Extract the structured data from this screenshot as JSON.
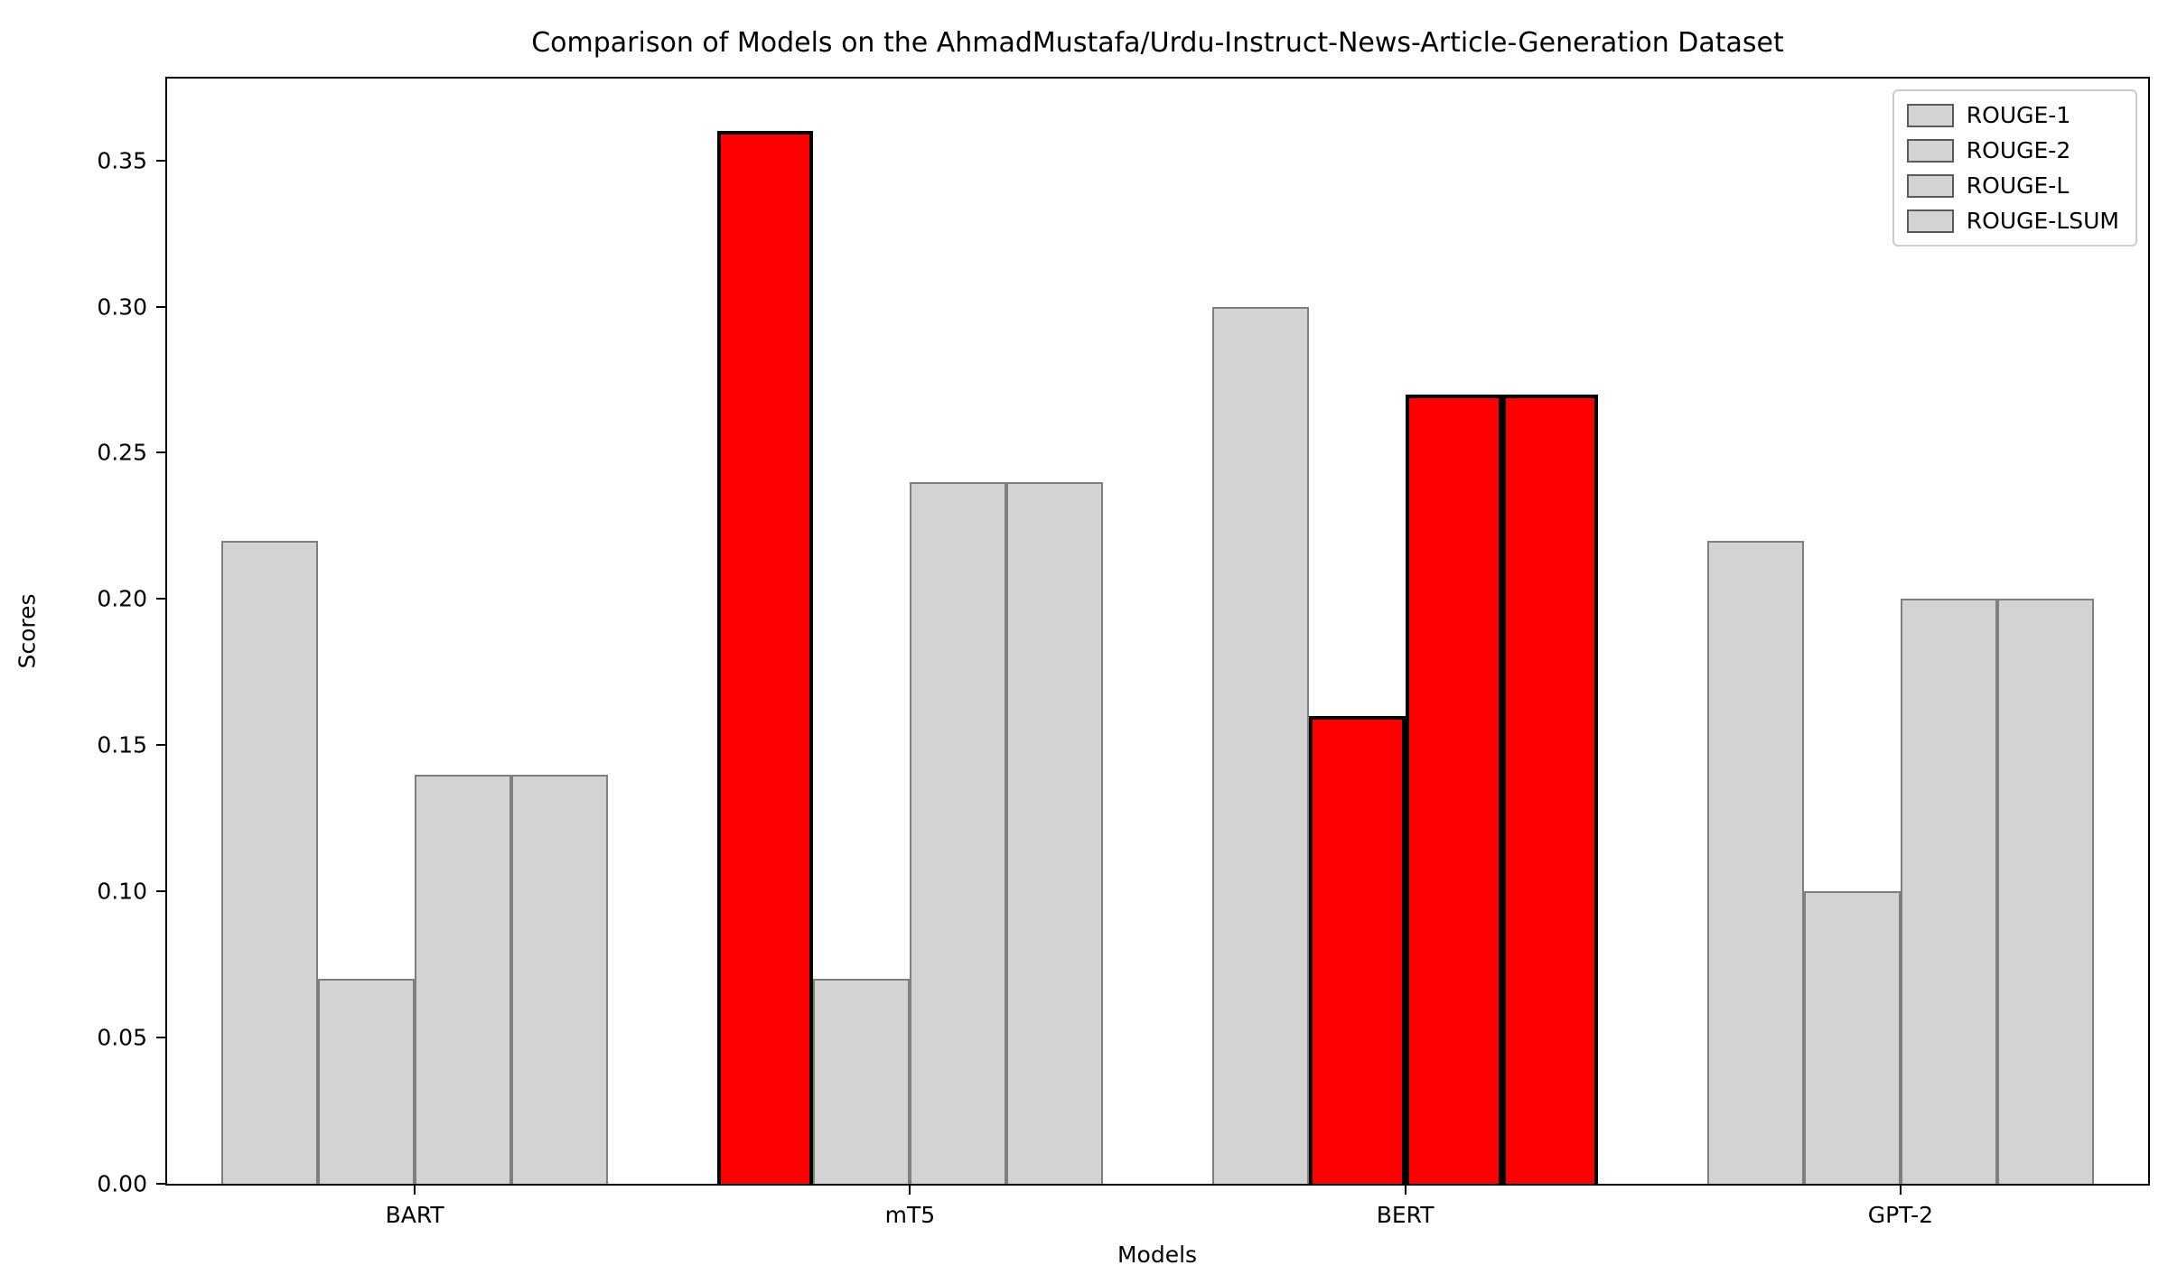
{
  "chart_data": {
    "type": "bar",
    "title": "Comparison of Models on the AhmadMustafa/Urdu-Instruct-News-Article-Generation Dataset",
    "xlabel": "Models",
    "ylabel": "Scores",
    "categories": [
      "BART",
      "mT5",
      "BERT",
      "GPT-2"
    ],
    "series": [
      {
        "name": "ROUGE-1",
        "values": [
          0.22,
          0.36,
          0.3,
          0.22
        ]
      },
      {
        "name": "ROUGE-2",
        "values": [
          0.07,
          0.07,
          0.16,
          0.1
        ]
      },
      {
        "name": "ROUGE-L",
        "values": [
          0.14,
          0.24,
          0.27,
          0.2
        ]
      },
      {
        "name": "ROUGE-LSUM",
        "values": [
          0.14,
          0.24,
          0.27,
          0.2
        ]
      }
    ],
    "highlights": [
      {
        "series": "ROUGE-1",
        "category": "mT5"
      },
      {
        "series": "ROUGE-2",
        "category": "BERT"
      },
      {
        "series": "ROUGE-L",
        "category": "BERT"
      },
      {
        "series": "ROUGE-LSUM",
        "category": "BERT"
      }
    ],
    "bar_color": "#d3d3d3",
    "bar_edge_color": "#7f7f7f",
    "highlight_color": "#ff0000",
    "highlight_edge_color": "#000000",
    "ylim": [
      0,
      0.378
    ],
    "yticks": [
      0.0,
      0.05,
      0.1,
      0.15,
      0.2,
      0.25,
      0.3,
      0.35
    ],
    "grid": false,
    "legend": {
      "position": "top-right",
      "entries": [
        "ROUGE-1",
        "ROUGE-2",
        "ROUGE-L",
        "ROUGE-LSUM"
      ]
    }
  }
}
